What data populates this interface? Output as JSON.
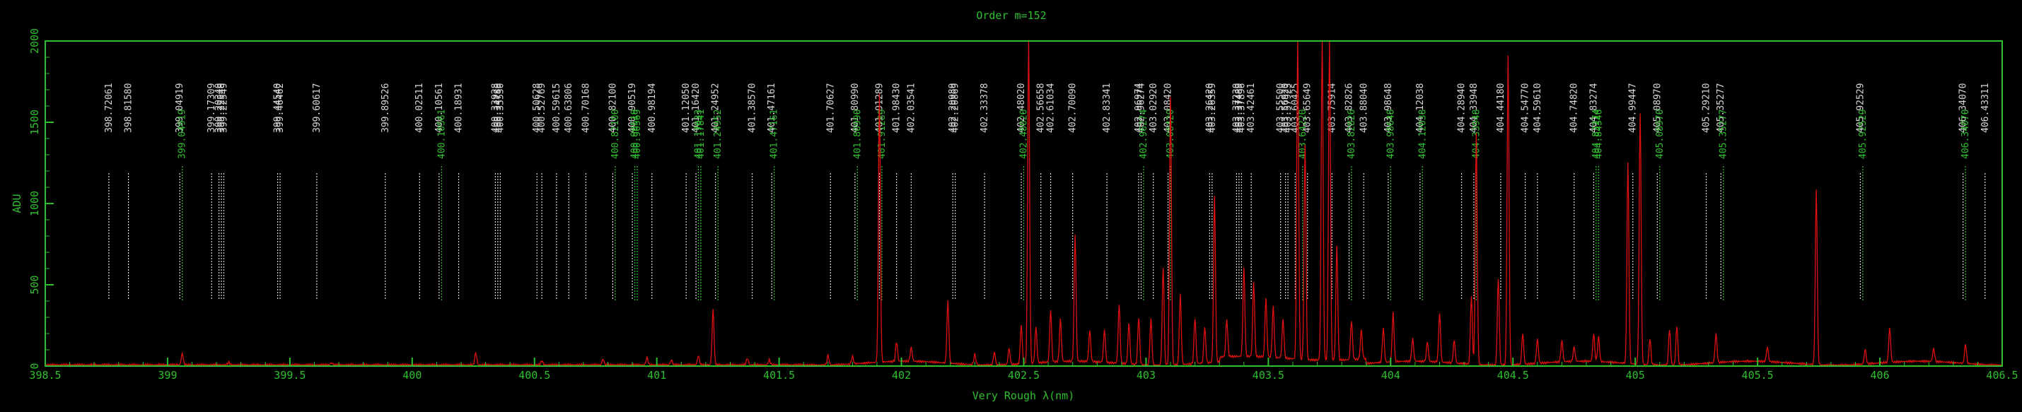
{
  "chart_data": {
    "type": "line",
    "title": "Order m=152",
    "xlabel": "Very Rough λ(nm)",
    "ylabel": "ADU",
    "xlim": [
      398.5,
      406.5
    ],
    "ylim": [
      0,
      2000
    ],
    "x_ticks": [
      "398.5",
      "399",
      "399.5",
      "400",
      "400.5",
      "401",
      "401.5",
      "402",
      "402.5",
      "403",
      "403.5",
      "404",
      "404.5",
      "405",
      "405.5",
      "406",
      "406.5"
    ],
    "y_ticks": [
      "0",
      "500",
      "1000",
      "1500",
      "2000"
    ],
    "colors": {
      "frame": "#2fbf2f",
      "spectrum": "#e01010",
      "white_lines": "#d8d8d8",
      "green_lines": "#2fbf2f"
    },
    "spectrum": {
      "baseline": 8,
      "peaks": [
        [
          399.06,
          70
        ],
        [
          399.25,
          15
        ],
        [
          399.67,
          12
        ],
        [
          400.26,
          75
        ],
        [
          400.53,
          25
        ],
        [
          400.78,
          35
        ],
        [
          400.96,
          45
        ],
        [
          401.06,
          30
        ],
        [
          401.17,
          55
        ],
        [
          401.23,
          340
        ],
        [
          401.37,
          40
        ],
        [
          401.46,
          30
        ],
        [
          401.7,
          60
        ],
        [
          401.8,
          45
        ],
        [
          401.91,
          1650
        ],
        [
          401.98,
          120
        ],
        [
          402.04,
          85
        ],
        [
          402.19,
          380
        ],
        [
          402.3,
          65
        ],
        [
          402.38,
          80
        ],
        [
          402.44,
          100
        ],
        [
          402.49,
          240
        ],
        [
          402.52,
          2000
        ],
        [
          402.55,
          220
        ],
        [
          402.61,
          320
        ],
        [
          402.65,
          260
        ],
        [
          402.71,
          780
        ],
        [
          402.77,
          190
        ],
        [
          402.83,
          200
        ],
        [
          402.89,
          360
        ],
        [
          402.93,
          250
        ],
        [
          402.97,
          290
        ],
        [
          403.02,
          280
        ],
        [
          403.07,
          600
        ],
        [
          403.1,
          1650
        ],
        [
          403.14,
          430
        ],
        [
          403.2,
          280
        ],
        [
          403.24,
          220
        ],
        [
          403.28,
          1020
        ],
        [
          403.33,
          230
        ],
        [
          403.4,
          540
        ],
        [
          403.44,
          460
        ],
        [
          403.49,
          360
        ],
        [
          403.52,
          310
        ],
        [
          403.56,
          240
        ],
        [
          403.62,
          2000
        ],
        [
          403.65,
          1320
        ],
        [
          403.72,
          2000
        ],
        [
          403.75,
          2000
        ],
        [
          403.78,
          700
        ],
        [
          403.84,
          240
        ],
        [
          403.88,
          180
        ],
        [
          403.97,
          210
        ],
        [
          404.01,
          300
        ],
        [
          404.09,
          140
        ],
        [
          404.15,
          120
        ],
        [
          404.2,
          300
        ],
        [
          404.26,
          140
        ],
        [
          404.33,
          420
        ],
        [
          404.35,
          1420
        ],
        [
          404.44,
          530
        ],
        [
          404.48,
          1900
        ],
        [
          404.54,
          190
        ],
        [
          404.6,
          150
        ],
        [
          404.7,
          130
        ],
        [
          404.75,
          90
        ],
        [
          404.83,
          170
        ],
        [
          404.85,
          150
        ],
        [
          404.97,
          1230
        ],
        [
          405.02,
          1550
        ],
        [
          405.06,
          160
        ],
        [
          405.14,
          220
        ],
        [
          405.17,
          240
        ],
        [
          405.33,
          180
        ],
        [
          405.54,
          90
        ],
        [
          405.74,
          1080
        ],
        [
          405.94,
          90
        ],
        [
          406.04,
          210
        ],
        [
          406.22,
          80
        ],
        [
          406.35,
          120
        ]
      ]
    },
    "line_list": [
      {
        "wl": 398.76,
        "label": "398.72061",
        "color": "white"
      },
      {
        "wl": 398.84,
        "label": "398.81580",
        "color": "white"
      },
      {
        "wl": 399.05,
        "label": "399.04919",
        "color": "white"
      },
      {
        "wl": 399.06,
        "label": "399.04919",
        "color": "green"
      },
      {
        "wl": 399.18,
        "label": "399.17309",
        "color": "white"
      },
      {
        "wl": 399.21,
        "label": "399.20340",
        "color": "white"
      },
      {
        "wl": 399.22,
        "label": "399.22540",
        "color": "white"
      },
      {
        "wl": 399.23,
        "label": "399.22549",
        "color": "white"
      },
      {
        "wl": 399.45,
        "label": "399.44540",
        "color": "white"
      },
      {
        "wl": 399.46,
        "label": "399.46462",
        "color": "white"
      },
      {
        "wl": 399.61,
        "label": "399.60617",
        "color": "white"
      },
      {
        "wl": 399.89,
        "label": "399.89526",
        "color": "white"
      },
      {
        "wl": 400.03,
        "label": "400.02511",
        "color": "white"
      },
      {
        "wl": 400.11,
        "label": "400.10561",
        "color": "white"
      },
      {
        "wl": 400.12,
        "label": "400.10561",
        "color": "green"
      },
      {
        "wl": 400.19,
        "label": "400.18931",
        "color": "white"
      },
      {
        "wl": 400.34,
        "label": "400.33928",
        "color": "white"
      },
      {
        "wl": 400.35,
        "label": "400.34780",
        "color": "white"
      },
      {
        "wl": 400.36,
        "label": "400.35530",
        "color": "white"
      },
      {
        "wl": 400.51,
        "label": "400.50628",
        "color": "white"
      },
      {
        "wl": 400.53,
        "label": "400.52769",
        "color": "white"
      },
      {
        "wl": 400.59,
        "label": "400.59615",
        "color": "white"
      },
      {
        "wl": 400.64,
        "label": "400.63806",
        "color": "white"
      },
      {
        "wl": 400.71,
        "label": "400.70168",
        "color": "white"
      },
      {
        "wl": 400.82,
        "label": "400.82100",
        "color": "white"
      },
      {
        "wl": 400.83,
        "label": "400.82100",
        "color": "green"
      },
      {
        "wl": 400.9,
        "label": "400.90519",
        "color": "white"
      },
      {
        "wl": 400.91,
        "label": "400.90519",
        "color": "green"
      },
      {
        "wl": 400.92,
        "label": "400.90569",
        "color": "green"
      },
      {
        "wl": 400.98,
        "label": "400.98194",
        "color": "white"
      },
      {
        "wl": 401.12,
        "label": "401.12050",
        "color": "white"
      },
      {
        "wl": 401.16,
        "label": "401.16420",
        "color": "white"
      },
      {
        "wl": 401.17,
        "label": "401.17033",
        "color": "green"
      },
      {
        "wl": 401.18,
        "label": "401.17841",
        "color": "green"
      },
      {
        "wl": 401.24,
        "label": "401.24952",
        "color": "white"
      },
      {
        "wl": 401.25,
        "label": "401.24952",
        "color": "green"
      },
      {
        "wl": 401.39,
        "label": "401.38570",
        "color": "white"
      },
      {
        "wl": 401.47,
        "label": "401.47161",
        "color": "white"
      },
      {
        "wl": 401.48,
        "label": "401.47161",
        "color": "green"
      },
      {
        "wl": 401.71,
        "label": "401.70627",
        "color": "white"
      },
      {
        "wl": 401.81,
        "label": "401.80990",
        "color": "white"
      },
      {
        "wl": 401.82,
        "label": "401.80990",
        "color": "green"
      },
      {
        "wl": 401.91,
        "label": "401.91289",
        "color": "white"
      },
      {
        "wl": 401.92,
        "label": "401.91289",
        "color": "green"
      },
      {
        "wl": 401.98,
        "label": "401.98430",
        "color": "white"
      },
      {
        "wl": 402.04,
        "label": "402.03541",
        "color": "white"
      },
      {
        "wl": 402.21,
        "label": "402.20989",
        "color": "white"
      },
      {
        "wl": 402.22,
        "label": "402.20869",
        "color": "white"
      },
      {
        "wl": 402.34,
        "label": "402.33378",
        "color": "white"
      },
      {
        "wl": 402.49,
        "label": "402.48020",
        "color": "white"
      },
      {
        "wl": 402.5,
        "label": "402.48020",
        "color": "green"
      },
      {
        "wl": 402.57,
        "label": "402.56658",
        "color": "white"
      },
      {
        "wl": 402.61,
        "label": "402.61034",
        "color": "white"
      },
      {
        "wl": 402.7,
        "label": "402.70090",
        "color": "white"
      },
      {
        "wl": 402.84,
        "label": "402.83341",
        "color": "white"
      },
      {
        "wl": 402.97,
        "label": "402.96974",
        "color": "white"
      },
      {
        "wl": 402.98,
        "label": "402.96274",
        "color": "white"
      },
      {
        "wl": 402.99,
        "label": "402.96274",
        "color": "green"
      },
      {
        "wl": 403.03,
        "label": "403.02920",
        "color": "white"
      },
      {
        "wl": 403.09,
        "label": "403.08420",
        "color": "white"
      },
      {
        "wl": 403.1,
        "label": "403.08420",
        "color": "green"
      },
      {
        "wl": 403.26,
        "label": "403.26420",
        "color": "white"
      },
      {
        "wl": 403.27,
        "label": "403.26359",
        "color": "white"
      },
      {
        "wl": 403.37,
        "label": "403.37230",
        "color": "white"
      },
      {
        "wl": 403.38,
        "label": "403.37489",
        "color": "white"
      },
      {
        "wl": 403.39,
        "label": "403.37896",
        "color": "white"
      },
      {
        "wl": 403.43,
        "label": "403.42461",
        "color": "white"
      },
      {
        "wl": 403.55,
        "label": "403.55500",
        "color": "white"
      },
      {
        "wl": 403.57,
        "label": "403.56920",
        "color": "white"
      },
      {
        "wl": 403.58,
        "label": "403.57923",
        "color": "white"
      },
      {
        "wl": 403.61,
        "label": "403.60425",
        "color": "white"
      },
      {
        "wl": 403.64,
        "label": "403.64220",
        "color": "green"
      },
      {
        "wl": 403.66,
        "label": "403.65649",
        "color": "white"
      },
      {
        "wl": 403.76,
        "label": "403.75914",
        "color": "white"
      },
      {
        "wl": 403.83,
        "label": "403.82826",
        "color": "white"
      },
      {
        "wl": 403.84,
        "label": "403.82826",
        "color": "green"
      },
      {
        "wl": 403.89,
        "label": "403.88040",
        "color": "white"
      },
      {
        "wl": 403.99,
        "label": "403.98648",
        "color": "white"
      },
      {
        "wl": 404.0,
        "label": "403.98648",
        "color": "green"
      },
      {
        "wl": 404.12,
        "label": "404.12038",
        "color": "white"
      },
      {
        "wl": 404.13,
        "label": "404.12038",
        "color": "green"
      },
      {
        "wl": 404.29,
        "label": "404.28940",
        "color": "white"
      },
      {
        "wl": 404.34,
        "label": "404.33948",
        "color": "white"
      },
      {
        "wl": 404.35,
        "label": "404.33948",
        "color": "green"
      },
      {
        "wl": 404.45,
        "label": "404.44180",
        "color": "white"
      },
      {
        "wl": 404.55,
        "label": "404.54770",
        "color": "white"
      },
      {
        "wl": 404.6,
        "label": "404.59610",
        "color": "white"
      },
      {
        "wl": 404.75,
        "label": "404.74820",
        "color": "white"
      },
      {
        "wl": 404.83,
        "label": "404.83274",
        "color": "white"
      },
      {
        "wl": 404.84,
        "label": "404.83274",
        "color": "green"
      },
      {
        "wl": 404.85,
        "label": "404.84346",
        "color": "green"
      },
      {
        "wl": 404.99,
        "label": "404.99447",
        "color": "white"
      },
      {
        "wl": 405.09,
        "label": "405.08970",
        "color": "white"
      },
      {
        "wl": 405.1,
        "label": "405.08970",
        "color": "green"
      },
      {
        "wl": 405.29,
        "label": "405.29210",
        "color": "white"
      },
      {
        "wl": 405.35,
        "label": "405.35277",
        "color": "white"
      },
      {
        "wl": 405.36,
        "label": "405.35277",
        "color": "green"
      },
      {
        "wl": 405.92,
        "label": "405.92529",
        "color": "white"
      },
      {
        "wl": 405.93,
        "label": "405.92529",
        "color": "green"
      },
      {
        "wl": 406.34,
        "label": "406.34070",
        "color": "white"
      },
      {
        "wl": 406.35,
        "label": "406.34070",
        "color": "green"
      },
      {
        "wl": 406.43,
        "label": "406.43311",
        "color": "white"
      }
    ]
  }
}
